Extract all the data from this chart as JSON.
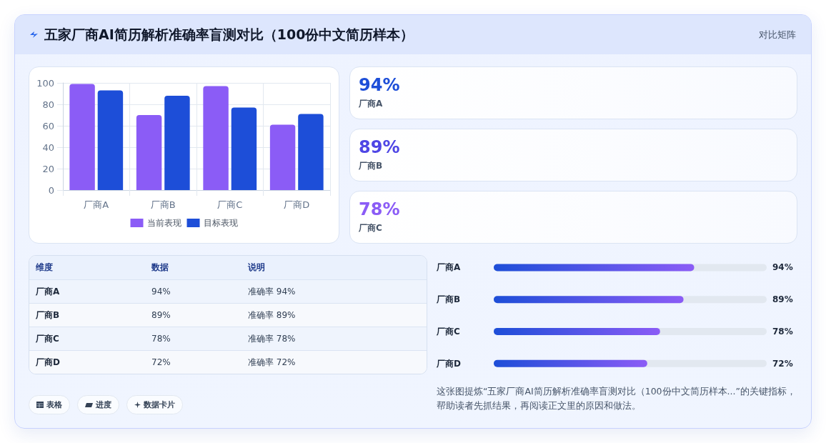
{
  "chart_data": [
    {
      "type": "other",
      "title": "五家厂商AI简历解析准确率盲测对比（100份中文简历样本）",
      "annotations": [
        "对比矩阵"
      ]
    },
    {
      "type": "bar",
      "categories": [
        "厂商A",
        "厂商B",
        "厂商C",
        "厂商D"
      ],
      "series": [
        {
          "name": "当前表现",
          "color": "#8b5cf6",
          "values": [
            99,
            70,
            97,
            61
          ]
        },
        {
          "name": "目标表现",
          "color": "#1d4ed8",
          "values": [
            93,
            88,
            77,
            71
          ]
        }
      ],
      "ylim": [
        0,
        100
      ],
      "yticks": [
        0,
        20,
        40,
        60,
        80,
        100
      ],
      "grid": true,
      "legend": "bottom"
    },
    {
      "type": "other",
      "categories": [
        "厂商A",
        "厂商B",
        "厂商C"
      ],
      "value_labels": [
        "94%",
        "89%",
        "78%"
      ]
    },
    {
      "type": "other",
      "annotations": [
        "维度",
        "数据",
        "说明",
        "厂商A",
        "94%",
        "准确率 94%",
        "厂商B",
        "89%",
        "准确率 89%",
        "厂商C",
        "78%",
        "准确率 78%",
        "厂商D",
        "72%",
        "准确率 72%"
      ]
    },
    {
      "type": "bar",
      "orientation": "horizontal",
      "categories": [
        "厂商A",
        "厂商B",
        "厂商C",
        "厂商D"
      ],
      "series": [
        {
          "color": "#8b5cf6",
          "values": [
            94,
            89,
            78,
            72
          ],
          "value_labels": [
            "94%",
            "89%",
            "78%",
            "72%"
          ]
        }
      ],
      "xlim": [
        0,
        128
      ],
      "tick_labels": "y",
      "annotations": [
        "这张图提炼“五家厂商AI简历解析准确率盲测对比（100份中文简历样本...”的关键指标，帮助读者先抓结果，再阅读正文里的原因和做法。"
      ]
    },
    {
      "type": "other",
      "annotations": [
        "表格",
        "进度",
        "数据卡片"
      ]
    }
  ]
}
